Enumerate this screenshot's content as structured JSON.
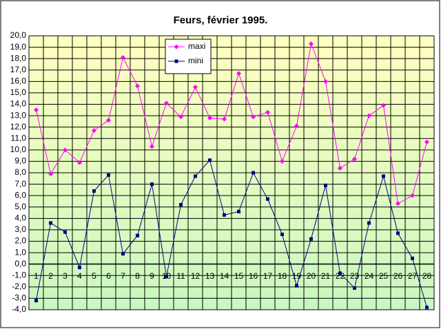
{
  "chart_data": {
    "type": "line",
    "title": "Feurs, février 1995.",
    "categories": [
      "1",
      "2",
      "3",
      "4",
      "5",
      "6",
      "7",
      "8",
      "9",
      "10",
      "11",
      "12",
      "13",
      "14",
      "15",
      "16",
      "17",
      "18",
      "19",
      "20",
      "21",
      "22",
      "23",
      "24",
      "25",
      "26",
      "27",
      "28"
    ],
    "series": [
      {
        "name": "maxi",
        "color": "#ff00ff",
        "marker": "diamond",
        "values": [
          13.5,
          7.9,
          10.0,
          8.9,
          11.7,
          12.6,
          18.1,
          15.6,
          10.3,
          14.1,
          12.9,
          15.5,
          12.8,
          12.7,
          16.7,
          12.9,
          13.3,
          9.0,
          12.1,
          19.3,
          16.0,
          8.4,
          9.2,
          13.0,
          13.9,
          5.3,
          6.0,
          10.7
        ]
      },
      {
        "name": "mini",
        "color": "#000080",
        "marker": "square",
        "values": [
          -3.2,
          3.6,
          2.8,
          -0.3,
          6.4,
          7.8,
          0.9,
          2.5,
          7.0,
          -1.1,
          5.2,
          7.7,
          9.1,
          4.3,
          4.6,
          8.0,
          5.7,
          2.6,
          -1.9,
          2.2,
          6.9,
          -0.8,
          -2.1,
          3.6,
          7.7,
          2.7,
          0.5,
          -3.8
        ]
      }
    ],
    "ylim": [
      -4,
      20
    ],
    "yticks": [
      {
        "value": 20,
        "label": "20,0"
      },
      {
        "value": 19,
        "label": "19,0"
      },
      {
        "value": 18,
        "label": "18,0"
      },
      {
        "value": 17,
        "label": "17,0"
      },
      {
        "value": 16,
        "label": "16,0"
      },
      {
        "value": 15,
        "label": "15,0"
      },
      {
        "value": 14,
        "label": "14,0"
      },
      {
        "value": 13,
        "label": "13,0"
      },
      {
        "value": 12,
        "label": "12,0"
      },
      {
        "value": 11,
        "label": "11,0"
      },
      {
        "value": 10,
        "label": "10,0"
      },
      {
        "value": 9,
        "label": "9,0"
      },
      {
        "value": 8,
        "label": "8,0"
      },
      {
        "value": 7,
        "label": "7,0"
      },
      {
        "value": 6,
        "label": "6,0"
      },
      {
        "value": 5,
        "label": "5,0"
      },
      {
        "value": 4,
        "label": "4,0"
      },
      {
        "value": 3,
        "label": "3,0"
      },
      {
        "value": 2,
        "label": "2,0"
      },
      {
        "value": 1,
        "label": "1,0"
      },
      {
        "value": 0,
        "label": "0,0"
      },
      {
        "value": -1,
        "label": "-1,0"
      },
      {
        "value": -2,
        "label": "-2,0"
      },
      {
        "value": -3,
        "label": "-3,0"
      },
      {
        "value": -4,
        "label": "-4,0"
      }
    ],
    "grid": true,
    "legend": "top"
  }
}
